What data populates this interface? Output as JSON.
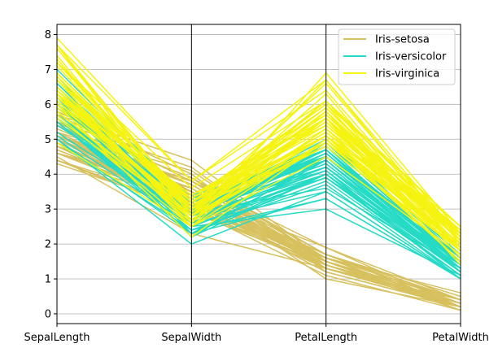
{
  "chart_data": {
    "type": "line",
    "chart_kind": "parallel-coordinates",
    "title": "",
    "xlabel": "",
    "ylabel": "",
    "categories": [
      "SepalLength",
      "SepalWidth",
      "PetalLength",
      "PetalWidth"
    ],
    "ylim": [
      -0.28,
      8.29
    ],
    "yticks": [
      0,
      1,
      2,
      3,
      4,
      5,
      6,
      7,
      8
    ],
    "grid": true,
    "legend_position": "top-right",
    "series": [
      {
        "name": "Iris-setosa",
        "color": "#d7c15e",
        "lines": [
          [
            5.1,
            3.5,
            1.4,
            0.2
          ],
          [
            4.9,
            3.0,
            1.4,
            0.2
          ],
          [
            4.7,
            3.2,
            1.3,
            0.2
          ],
          [
            4.6,
            3.1,
            1.5,
            0.2
          ],
          [
            5.0,
            3.6,
            1.4,
            0.2
          ],
          [
            5.4,
            3.9,
            1.7,
            0.4
          ],
          [
            4.6,
            3.4,
            1.4,
            0.3
          ],
          [
            5.0,
            3.4,
            1.5,
            0.2
          ],
          [
            4.4,
            2.9,
            1.4,
            0.2
          ],
          [
            4.9,
            3.1,
            1.5,
            0.1
          ],
          [
            5.4,
            3.7,
            1.5,
            0.2
          ],
          [
            4.8,
            3.4,
            1.6,
            0.2
          ],
          [
            4.8,
            3.0,
            1.4,
            0.1
          ],
          [
            4.3,
            3.0,
            1.1,
            0.1
          ],
          [
            5.8,
            4.0,
            1.2,
            0.2
          ],
          [
            5.7,
            4.4,
            1.5,
            0.4
          ],
          [
            5.4,
            3.9,
            1.3,
            0.4
          ],
          [
            5.1,
            3.5,
            1.4,
            0.3
          ],
          [
            5.7,
            3.8,
            1.7,
            0.3
          ],
          [
            5.1,
            3.8,
            1.5,
            0.3
          ],
          [
            5.4,
            3.4,
            1.7,
            0.2
          ],
          [
            5.1,
            3.7,
            1.5,
            0.4
          ],
          [
            4.6,
            3.6,
            1.0,
            0.2
          ],
          [
            5.1,
            3.3,
            1.7,
            0.5
          ],
          [
            4.8,
            3.4,
            1.9,
            0.2
          ],
          [
            5.0,
            3.0,
            1.6,
            0.2
          ],
          [
            5.0,
            3.4,
            1.6,
            0.4
          ],
          [
            5.2,
            3.5,
            1.5,
            0.2
          ],
          [
            5.2,
            3.4,
            1.4,
            0.2
          ],
          [
            4.7,
            3.2,
            1.6,
            0.2
          ],
          [
            4.8,
            3.1,
            1.6,
            0.2
          ],
          [
            5.4,
            3.4,
            1.5,
            0.4
          ],
          [
            5.2,
            4.1,
            1.5,
            0.1
          ],
          [
            5.5,
            4.2,
            1.4,
            0.2
          ],
          [
            4.9,
            3.1,
            1.5,
            0.1
          ],
          [
            5.0,
            3.2,
            1.2,
            0.2
          ],
          [
            5.5,
            3.5,
            1.3,
            0.2
          ],
          [
            4.9,
            3.1,
            1.5,
            0.1
          ],
          [
            4.4,
            3.0,
            1.3,
            0.2
          ],
          [
            5.1,
            3.4,
            1.5,
            0.2
          ],
          [
            5.0,
            3.5,
            1.3,
            0.3
          ],
          [
            4.5,
            2.3,
            1.3,
            0.3
          ],
          [
            4.4,
            3.2,
            1.3,
            0.2
          ],
          [
            5.0,
            3.5,
            1.6,
            0.6
          ],
          [
            5.1,
            3.8,
            1.9,
            0.4
          ],
          [
            4.8,
            3.0,
            1.4,
            0.3
          ],
          [
            5.1,
            3.8,
            1.6,
            0.2
          ],
          [
            4.6,
            3.2,
            1.4,
            0.2
          ],
          [
            5.3,
            3.7,
            1.5,
            0.2
          ],
          [
            5.0,
            3.3,
            1.4,
            0.2
          ]
        ]
      },
      {
        "name": "Iris-versicolor",
        "color": "#26dbc5",
        "lines": [
          [
            7.0,
            3.2,
            4.7,
            1.4
          ],
          [
            6.4,
            3.2,
            4.5,
            1.5
          ],
          [
            6.9,
            3.1,
            4.9,
            1.5
          ],
          [
            5.5,
            2.3,
            4.0,
            1.3
          ],
          [
            6.5,
            2.8,
            4.6,
            1.5
          ],
          [
            5.7,
            2.8,
            4.5,
            1.3
          ],
          [
            6.3,
            3.3,
            4.7,
            1.6
          ],
          [
            4.9,
            2.4,
            3.3,
            1.0
          ],
          [
            6.6,
            2.9,
            4.6,
            1.3
          ],
          [
            5.2,
            2.7,
            3.9,
            1.4
          ],
          [
            5.0,
            2.0,
            3.5,
            1.0
          ],
          [
            5.9,
            3.0,
            4.2,
            1.5
          ],
          [
            6.0,
            2.2,
            4.0,
            1.0
          ],
          [
            6.1,
            2.9,
            4.7,
            1.4
          ],
          [
            5.6,
            2.9,
            3.6,
            1.3
          ],
          [
            6.7,
            3.1,
            4.4,
            1.4
          ],
          [
            5.6,
            3.0,
            4.5,
            1.5
          ],
          [
            5.8,
            2.7,
            4.1,
            1.0
          ],
          [
            6.2,
            2.2,
            4.5,
            1.5
          ],
          [
            5.6,
            2.5,
            3.9,
            1.1
          ],
          [
            5.9,
            3.2,
            4.8,
            1.8
          ],
          [
            6.1,
            2.8,
            4.0,
            1.3
          ],
          [
            6.3,
            2.5,
            4.9,
            1.5
          ],
          [
            6.1,
            2.8,
            4.7,
            1.2
          ],
          [
            6.4,
            2.9,
            4.3,
            1.3
          ],
          [
            6.6,
            3.0,
            4.4,
            1.4
          ],
          [
            6.8,
            2.8,
            4.8,
            1.4
          ],
          [
            6.7,
            3.0,
            5.0,
            1.7
          ],
          [
            6.0,
            2.9,
            4.5,
            1.5
          ],
          [
            5.7,
            2.6,
            3.5,
            1.0
          ],
          [
            5.5,
            2.4,
            3.8,
            1.1
          ],
          [
            5.5,
            2.4,
            3.7,
            1.0
          ],
          [
            5.8,
            2.7,
            3.9,
            1.2
          ],
          [
            6.0,
            2.7,
            5.1,
            1.6
          ],
          [
            5.4,
            3.0,
            4.5,
            1.5
          ],
          [
            6.0,
            3.4,
            4.5,
            1.6
          ],
          [
            6.7,
            3.1,
            4.7,
            1.5
          ],
          [
            6.3,
            2.3,
            4.4,
            1.3
          ],
          [
            5.6,
            3.0,
            4.1,
            1.3
          ],
          [
            5.5,
            2.5,
            4.0,
            1.3
          ],
          [
            5.5,
            2.6,
            4.4,
            1.2
          ],
          [
            6.1,
            3.0,
            4.6,
            1.4
          ],
          [
            5.8,
            2.6,
            4.0,
            1.2
          ],
          [
            5.0,
            2.3,
            3.3,
            1.0
          ],
          [
            5.6,
            2.7,
            4.2,
            1.3
          ],
          [
            5.7,
            3.0,
            4.2,
            1.2
          ],
          [
            5.7,
            2.9,
            4.2,
            1.3
          ],
          [
            6.2,
            2.9,
            4.3,
            1.3
          ],
          [
            5.1,
            2.5,
            3.0,
            1.1
          ],
          [
            5.7,
            2.8,
            4.1,
            1.3
          ]
        ]
      },
      {
        "name": "Iris-virginica",
        "color": "#f5f311",
        "lines": [
          [
            6.3,
            3.3,
            6.0,
            2.5
          ],
          [
            5.8,
            2.7,
            5.1,
            1.9
          ],
          [
            7.1,
            3.0,
            5.9,
            2.1
          ],
          [
            6.3,
            2.9,
            5.6,
            1.8
          ],
          [
            6.5,
            3.0,
            5.8,
            2.2
          ],
          [
            7.6,
            3.0,
            6.6,
            2.1
          ],
          [
            4.9,
            2.5,
            4.5,
            1.7
          ],
          [
            7.3,
            2.9,
            6.3,
            1.8
          ],
          [
            6.7,
            2.5,
            5.8,
            1.8
          ],
          [
            7.2,
            3.6,
            6.1,
            2.5
          ],
          [
            6.5,
            3.2,
            5.1,
            2.0
          ],
          [
            6.4,
            2.7,
            5.3,
            1.9
          ],
          [
            6.8,
            3.0,
            5.5,
            2.1
          ],
          [
            5.7,
            2.5,
            5.0,
            2.0
          ],
          [
            5.8,
            2.8,
            5.1,
            2.4
          ],
          [
            6.4,
            3.2,
            5.3,
            2.3
          ],
          [
            6.5,
            3.0,
            5.5,
            1.8
          ],
          [
            7.7,
            3.8,
            6.7,
            2.2
          ],
          [
            7.7,
            2.6,
            6.9,
            2.3
          ],
          [
            6.0,
            2.2,
            5.0,
            1.5
          ],
          [
            6.9,
            3.2,
            5.7,
            2.3
          ],
          [
            5.6,
            2.8,
            4.9,
            2.0
          ],
          [
            7.7,
            2.8,
            6.7,
            2.0
          ],
          [
            6.3,
            2.7,
            4.9,
            1.8
          ],
          [
            6.7,
            3.3,
            5.7,
            2.1
          ],
          [
            7.2,
            3.2,
            6.0,
            1.8
          ],
          [
            6.2,
            2.8,
            4.8,
            1.8
          ],
          [
            6.1,
            3.0,
            4.9,
            1.8
          ],
          [
            6.4,
            2.8,
            5.6,
            2.1
          ],
          [
            7.2,
            3.0,
            5.8,
            1.6
          ],
          [
            7.4,
            2.8,
            6.1,
            1.9
          ],
          [
            7.9,
            3.8,
            6.4,
            2.0
          ],
          [
            6.4,
            2.8,
            5.6,
            2.2
          ],
          [
            6.3,
            2.8,
            5.1,
            1.5
          ],
          [
            6.1,
            2.6,
            5.6,
            1.4
          ],
          [
            7.7,
            3.0,
            6.1,
            2.3
          ],
          [
            6.3,
            3.4,
            5.6,
            2.4
          ],
          [
            6.4,
            3.1,
            5.5,
            1.8
          ],
          [
            6.0,
            3.0,
            4.8,
            1.8
          ],
          [
            6.9,
            3.1,
            5.4,
            2.1
          ],
          [
            6.7,
            3.1,
            5.6,
            2.4
          ],
          [
            6.9,
            3.1,
            5.1,
            2.3
          ],
          [
            5.8,
            2.7,
            5.1,
            1.9
          ],
          [
            6.8,
            3.2,
            5.9,
            2.3
          ],
          [
            6.7,
            3.3,
            5.7,
            2.5
          ],
          [
            6.7,
            3.0,
            5.2,
            2.3
          ],
          [
            6.3,
            2.5,
            5.0,
            1.9
          ],
          [
            6.5,
            3.0,
            5.2,
            2.0
          ],
          [
            6.2,
            3.4,
            5.4,
            2.3
          ],
          [
            5.9,
            3.0,
            5.1,
            1.8
          ]
        ]
      }
    ]
  }
}
